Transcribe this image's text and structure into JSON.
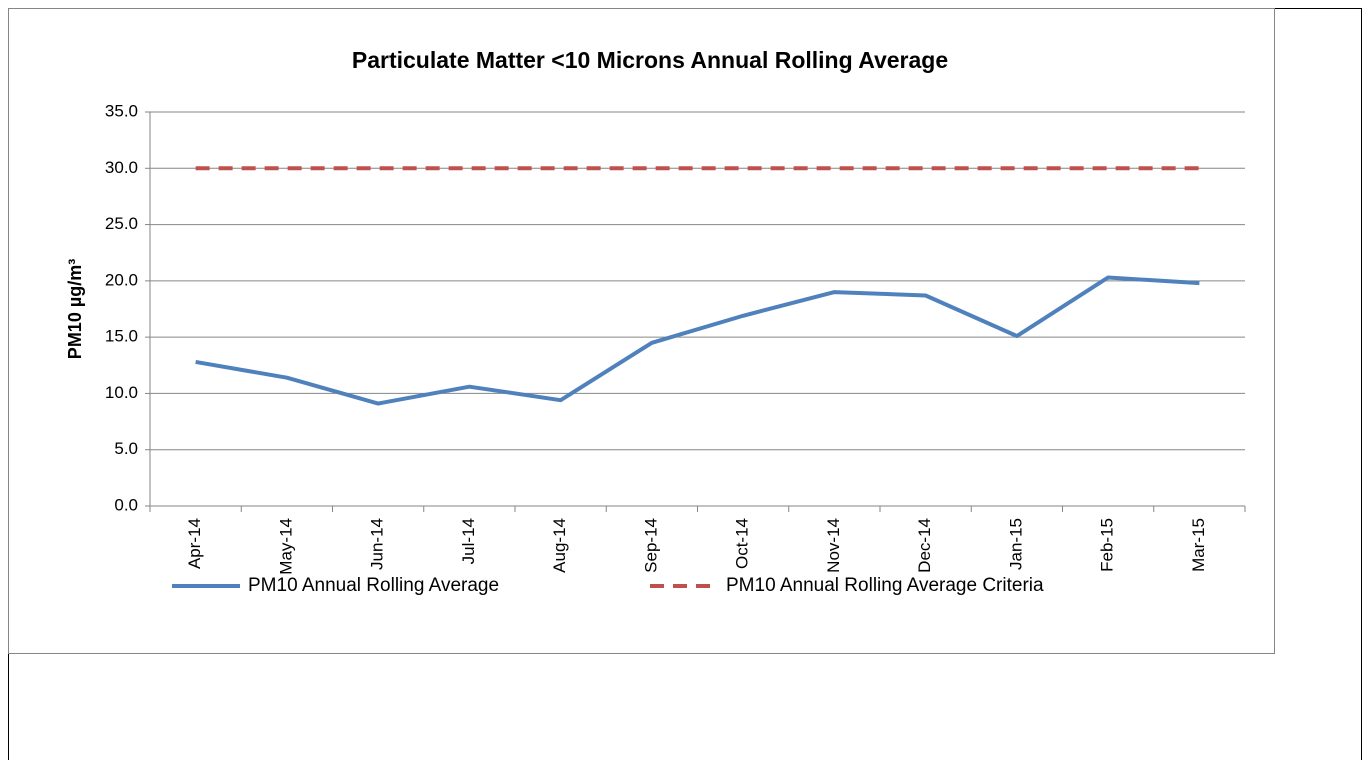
{
  "chart_data": {
    "type": "line",
    "title": "Particulate Matter <10 Microns Annual Rolling Average",
    "y_label": "PM10 µg/m³",
    "categories": [
      "Apr-14",
      "May-14",
      "Jun-14",
      "Jul-14",
      "Aug-14",
      "Sep-14",
      "Oct-14",
      "Nov-14",
      "Dec-14",
      "Jan-15",
      "Feb-15",
      "Mar-15"
    ],
    "series": [
      {
        "name": "PM10 Annual Rolling Average",
        "color": "#4f81bd",
        "dashed": false,
        "values": [
          12.8,
          11.4,
          9.1,
          10.6,
          9.4,
          14.5,
          16.9,
          19.0,
          18.7,
          15.1,
          20.3,
          19.8
        ]
      },
      {
        "name": "PM10 Annual Rolling Average Criteria",
        "color": "#c0504d",
        "dashed": true,
        "values": [
          30,
          30,
          30,
          30,
          30,
          30,
          30,
          30,
          30,
          30,
          30,
          30
        ]
      }
    ],
    "ylim": [
      0,
      35
    ],
    "yticks": [
      {
        "value": 0,
        "label": "0.0"
      },
      {
        "value": 5,
        "label": "5.0"
      },
      {
        "value": 10,
        "label": "10.0"
      },
      {
        "value": 15,
        "label": "15.0"
      },
      {
        "value": 20,
        "label": "20.0"
      },
      {
        "value": 25,
        "label": "25.0"
      },
      {
        "value": 30,
        "label": "30.0"
      },
      {
        "value": 35,
        "label": "35.0"
      }
    ],
    "grid": true,
    "legend": "bottom"
  }
}
